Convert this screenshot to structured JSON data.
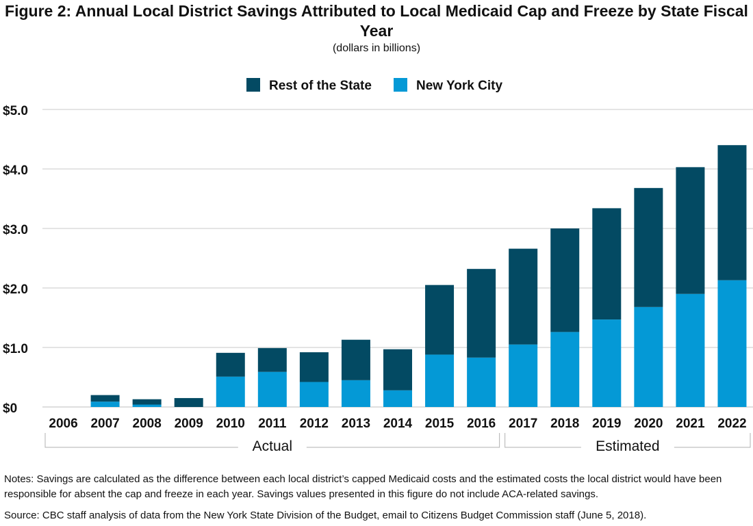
{
  "title": "Figure 2: Annual Local District Savings Attributed to Local Medicaid Cap and Freeze by State Fiscal Year",
  "subtitle": "(dollars in billions)",
  "notes": "Notes: Savings are calculated as the difference between each local district’s capped Medicaid costs and the estimated costs the local district would have been responsible for absent the cap and freeze in each year. Savings values presented in this figure do not include ACA-related savings.",
  "source": "Source: CBC staff analysis of data from the New York State Division of the Budget, email to Citizens Budget Commission staff (June 5, 2018).",
  "colors": {
    "rest_of_state": "#034a63",
    "new_york_city": "#0499d6",
    "grid": "#c8c8c8",
    "bracket": "#b0b0b0"
  },
  "chart_data": {
    "type": "bar",
    "stacked": true,
    "categories": [
      "2006",
      "2007",
      "2008",
      "2009",
      "2010",
      "2011",
      "2012",
      "2013",
      "2014",
      "2015",
      "2016",
      "2017",
      "2018",
      "2019",
      "2020",
      "2021",
      "2022"
    ],
    "series": [
      {
        "name": "New York City",
        "values": [
          0,
          0.09,
          0.04,
          0.0,
          0.51,
          0.59,
          0.42,
          0.45,
          0.28,
          0.88,
          0.83,
          1.05,
          1.26,
          1.47,
          1.68,
          1.9,
          2.13
        ]
      },
      {
        "name": "Rest of the State",
        "values": [
          0,
          0.11,
          0.09,
          0.15,
          0.4,
          0.4,
          0.5,
          0.68,
          0.69,
          1.17,
          1.49,
          1.61,
          1.74,
          1.87,
          2.0,
          2.13,
          2.27
        ]
      }
    ],
    "legend_order": [
      "Rest of the State",
      "New York City"
    ],
    "legend_position": "top-center",
    "ylim": [
      0,
      5
    ],
    "yticks": [
      0,
      1,
      2,
      3,
      4,
      5
    ],
    "ytick_labels": [
      "$0",
      "$1.0",
      "$2.0",
      "$3.0",
      "$4.0",
      "$5.0"
    ],
    "grid": true,
    "groups": [
      {
        "label": "Actual",
        "from": "2006",
        "to": "2016"
      },
      {
        "label": "Estimated",
        "from": "2017",
        "to": "2022"
      }
    ]
  }
}
